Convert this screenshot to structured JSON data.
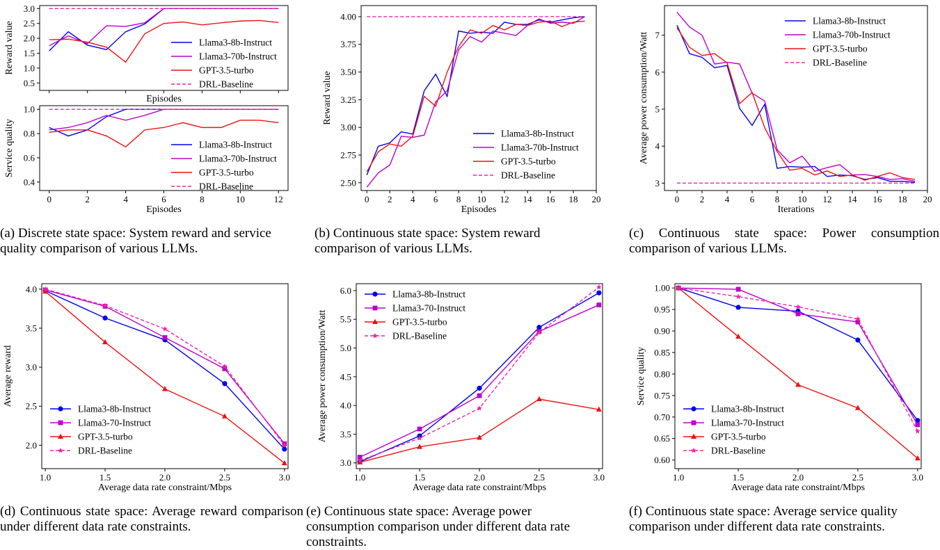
{
  "colors": {
    "llama8": "#0000ee",
    "llama70": "#bb00cc",
    "gpt": "#ee1111",
    "drl": "#ee22aa"
  },
  "captions": {
    "a": "(a) Discrete state space: System reward and service quality comparison of various LLMs.",
    "b": "(b) Continuous state space: System reward comparison of various LLMs.",
    "c": "(c) Continuous state space: Power consumption comparison of various LLMs.",
    "d": "(d) Continuous state space: Average reward comparison under different data rate constraints.",
    "e": "(e) Continuous state space: Average power consumption comparison under different data rate constraints.",
    "f": "(f) Continuous state space: Average service quality comparison under different data rate constraints."
  },
  "chart_data": [
    {
      "id": "a1",
      "type": "line",
      "xlabel": "Episodes",
      "ylabel": "Reward value",
      "xlim": [
        -0.5,
        12.5
      ],
      "ylim": [
        0.25,
        3.1
      ],
      "xticks": [
        0,
        2,
        4,
        6,
        8,
        10,
        12
      ],
      "yticks": [
        0.5,
        1.0,
        1.5,
        2.0,
        2.5,
        3.0
      ],
      "show_xticklabels": false,
      "legend": "lower-right",
      "series": [
        {
          "name": "Llama3-8b-Instruct",
          "style": "solid",
          "x": [
            0,
            1,
            2,
            3,
            4,
            5,
            6,
            7,
            8,
            9,
            10,
            11,
            12
          ],
          "y": [
            1.58,
            2.22,
            1.77,
            1.62,
            2.22,
            2.48,
            3.0,
            3.0,
            3.0,
            3.0,
            3.0,
            3.0,
            3.0
          ]
        },
        {
          "name": "Llama3-70b-Instruct",
          "style": "solid",
          "x": [
            0,
            1,
            2,
            3,
            4,
            5,
            6,
            7,
            8,
            9,
            10,
            11,
            12
          ],
          "y": [
            1.75,
            2.08,
            1.82,
            2.42,
            2.4,
            2.52,
            3.0,
            3.0,
            3.0,
            3.0,
            3.0,
            3.0,
            3.0
          ]
        },
        {
          "name": "GPT-3.5-turbo",
          "style": "solid",
          "x": [
            0,
            1,
            2,
            3,
            4,
            5,
            6,
            7,
            8,
            9,
            10,
            11,
            12
          ],
          "y": [
            1.95,
            1.97,
            1.87,
            1.7,
            1.2,
            2.15,
            2.5,
            2.55,
            2.45,
            2.52,
            2.58,
            2.6,
            2.53
          ]
        },
        {
          "name": "DRL-Baseline",
          "style": "dashed",
          "x": [
            0,
            12
          ],
          "y": [
            3.0,
            3.0
          ]
        }
      ]
    },
    {
      "id": "a2",
      "type": "line",
      "xlabel": "Episodes",
      "ylabel": "Service quality",
      "xlim": [
        -0.5,
        12.5
      ],
      "ylim": [
        0.33,
        1.03
      ],
      "xticks": [
        0,
        2,
        4,
        6,
        8,
        10,
        12
      ],
      "yticks": [
        0.4,
        0.6,
        0.8,
        1.0
      ],
      "legend": "lower-right",
      "series": [
        {
          "name": "Llama3-8b-Instruct",
          "style": "solid",
          "x": [
            0,
            1,
            2,
            3,
            4,
            5,
            6,
            7,
            8,
            9,
            10,
            11,
            12
          ],
          "y": [
            0.85,
            0.78,
            0.83,
            0.94,
            1.0,
            1.0,
            1.0,
            1.0,
            1.0,
            1.0,
            1.0,
            1.0,
            1.0
          ]
        },
        {
          "name": "Llama3-70b-Instruct",
          "style": "solid",
          "x": [
            0,
            1,
            2,
            3,
            4,
            5,
            6,
            7,
            8,
            9,
            10,
            11,
            12
          ],
          "y": [
            0.83,
            0.85,
            0.89,
            0.95,
            0.91,
            0.95,
            1.0,
            1.0,
            1.0,
            1.0,
            1.0,
            1.0,
            1.0
          ]
        },
        {
          "name": "GPT-3.5-turbo",
          "style": "solid",
          "x": [
            0,
            1,
            2,
            3,
            4,
            5,
            6,
            7,
            8,
            9,
            10,
            11,
            12
          ],
          "y": [
            0.81,
            0.83,
            0.83,
            0.78,
            0.69,
            0.83,
            0.85,
            0.89,
            0.85,
            0.85,
            0.91,
            0.91,
            0.89
          ]
        },
        {
          "name": "DRL-Baseline",
          "style": "dashed",
          "x": [
            0,
            12
          ],
          "y": [
            1.0,
            1.0
          ]
        }
      ]
    },
    {
      "id": "b",
      "type": "line",
      "xlabel": "Episodes",
      "ylabel": "Reward value",
      "xlim": [
        -0.5,
        20
      ],
      "ylim": [
        2.43,
        4.1
      ],
      "xticks": [
        0,
        2,
        4,
        6,
        8,
        10,
        12,
        14,
        16,
        18,
        20
      ],
      "yticks": [
        2.5,
        2.75,
        3.0,
        3.25,
        3.5,
        3.75,
        4.0
      ],
      "yticklabels": [
        "2.50",
        "2.75",
        "3.00",
        "3.25",
        "3.50",
        "3.75",
        "4.00"
      ],
      "legend": "lower-right",
      "series": [
        {
          "name": "Llama3-8b-Instruct",
          "style": "solid",
          "x": [
            0,
            1,
            2,
            3,
            4,
            5,
            6,
            7,
            8,
            9,
            10,
            11,
            12,
            13,
            14,
            15,
            16,
            17,
            18,
            19
          ],
          "y": [
            2.57,
            2.83,
            2.86,
            2.96,
            2.94,
            3.33,
            3.48,
            3.28,
            3.87,
            3.85,
            3.86,
            3.85,
            3.95,
            3.93,
            3.93,
            3.97,
            3.95,
            3.97,
            3.99,
            4.0
          ]
        },
        {
          "name": "Llama3-70b-Instruct",
          "style": "solid",
          "x": [
            0,
            1,
            2,
            3,
            4,
            5,
            6,
            7,
            8,
            9,
            10,
            11,
            12,
            13,
            14,
            15,
            16,
            17,
            18,
            19
          ],
          "y": [
            2.46,
            2.59,
            2.66,
            2.92,
            2.91,
            2.93,
            3.23,
            3.33,
            3.7,
            3.82,
            3.77,
            3.87,
            3.85,
            3.83,
            3.92,
            3.98,
            3.94,
            3.95,
            3.94,
            4.0
          ]
        },
        {
          "name": "GPT-3.5-turbo",
          "style": "solid",
          "x": [
            0,
            1,
            2,
            3,
            4,
            5,
            6,
            7,
            8,
            9,
            10,
            11,
            12,
            13,
            14,
            15,
            16,
            17,
            18,
            19
          ],
          "y": [
            2.6,
            2.78,
            2.85,
            2.83,
            2.92,
            3.28,
            3.19,
            3.5,
            3.73,
            3.88,
            3.85,
            3.92,
            3.88,
            3.93,
            3.92,
            3.95,
            3.96,
            3.91,
            3.95,
            3.96
          ]
        },
        {
          "name": "DRL-Baseline",
          "style": "dashed",
          "x": [
            0,
            19
          ],
          "y": [
            4.0,
            4.0
          ]
        }
      ]
    },
    {
      "id": "c",
      "type": "line",
      "xlabel": "Iterations",
      "ylabel": "Average power consumption/Watt",
      "xlim": [
        -1,
        20
      ],
      "ylim": [
        2.8,
        7.8
      ],
      "xticks": [
        0,
        2,
        4,
        6,
        8,
        10,
        12,
        14,
        16,
        18,
        20
      ],
      "yticks": [
        3,
        4,
        5,
        6,
        7
      ],
      "legend": "top-right",
      "series": [
        {
          "name": "Llama3-8b-Instruct",
          "style": "solid",
          "x": [
            0,
            1,
            2,
            3,
            4,
            5,
            6,
            7,
            8,
            9,
            10,
            11,
            12,
            13,
            14,
            15,
            16,
            17,
            18,
            19
          ],
          "y": [
            7.27,
            6.5,
            6.4,
            6.12,
            6.18,
            5.02,
            4.56,
            5.13,
            3.4,
            3.45,
            3.43,
            3.45,
            3.18,
            3.22,
            3.2,
            3.1,
            3.15,
            3.05,
            3.05,
            3.02
          ]
        },
        {
          "name": "Llama3-70b-Instruct",
          "style": "solid",
          "x": [
            0,
            1,
            2,
            3,
            4,
            5,
            6,
            7,
            8,
            9,
            10,
            11,
            12,
            13,
            14,
            15,
            16,
            17,
            18,
            19
          ],
          "y": [
            7.62,
            7.22,
            7.0,
            6.22,
            6.27,
            6.22,
            5.43,
            5.22,
            3.9,
            3.55,
            3.73,
            3.32,
            3.42,
            3.5,
            3.22,
            3.23,
            3.18,
            3.1,
            3.12,
            3.05
          ]
        },
        {
          "name": "GPT-3.5-turbo",
          "style": "solid",
          "x": [
            0,
            1,
            2,
            3,
            4,
            5,
            6,
            7,
            8,
            9,
            10,
            11,
            12,
            13,
            14,
            15,
            16,
            17,
            18,
            19
          ],
          "y": [
            7.2,
            6.67,
            6.45,
            6.5,
            6.25,
            5.15,
            5.45,
            4.5,
            3.85,
            3.35,
            3.4,
            3.22,
            3.33,
            3.18,
            3.22,
            3.08,
            3.18,
            3.28,
            3.15,
            3.1
          ]
        },
        {
          "name": "DRL-Baseline",
          "style": "dashed",
          "x": [
            0,
            19
          ],
          "y": [
            3.0,
            3.0
          ]
        }
      ]
    },
    {
      "id": "d",
      "type": "line",
      "xlabel": "Average data rate constraint/Mbps",
      "ylabel": "Average reward",
      "xlim": [
        0.97,
        3.03
      ],
      "ylim": [
        1.7,
        4.07
      ],
      "xticks": [
        1.0,
        1.5,
        2.0,
        2.5,
        3.0
      ],
      "yticks": [
        2.0,
        2.5,
        3.0,
        3.5,
        4.0
      ],
      "legend": "lower-left",
      "series": [
        {
          "name": "Llama3-8b-Instruct",
          "style": "solid",
          "marker": "circle",
          "x": [
            1.0,
            1.5,
            2.0,
            2.5,
            3.0
          ],
          "y": [
            3.98,
            3.63,
            3.35,
            2.79,
            1.95
          ]
        },
        {
          "name": "Llama3-70-Instruct",
          "style": "solid",
          "marker": "square",
          "x": [
            1.0,
            1.5,
            2.0,
            2.5,
            3.0
          ],
          "y": [
            3.99,
            3.78,
            3.38,
            2.98,
            2.02
          ]
        },
        {
          "name": "GPT-3.5-turbo",
          "style": "solid",
          "marker": "triangle",
          "x": [
            1.0,
            1.5,
            2.0,
            2.5,
            3.0
          ],
          "y": [
            3.97,
            3.32,
            2.72,
            2.37,
            1.77
          ]
        },
        {
          "name": "DRL-Baseline",
          "style": "dashed",
          "marker": "star",
          "x": [
            1.0,
            1.5,
            2.0,
            2.5,
            3.0
          ],
          "y": [
            4.0,
            3.79,
            3.49,
            3.01,
            2.0
          ]
        }
      ]
    },
    {
      "id": "e",
      "type": "line",
      "xlabel": "Average data rate constraint/Mbps",
      "ylabel": "Average power consumption/Watt",
      "xlim": [
        0.97,
        3.03
      ],
      "ylim": [
        2.9,
        6.12
      ],
      "xticks": [
        1.0,
        1.5,
        2.0,
        2.5,
        3.0
      ],
      "yticks": [
        3.0,
        3.5,
        4.0,
        4.5,
        5.0,
        5.5,
        6.0
      ],
      "legend": "top-left",
      "series": [
        {
          "name": "Llama3-8b-Instruct",
          "style": "solid",
          "marker": "circle",
          "x": [
            1.0,
            1.5,
            2.0,
            2.5,
            3.0
          ],
          "y": [
            3.02,
            3.47,
            4.3,
            5.36,
            5.96
          ]
        },
        {
          "name": "Llama3-70-Instruct",
          "style": "solid",
          "marker": "square",
          "x": [
            1.0,
            1.5,
            2.0,
            2.5,
            3.0
          ],
          "y": [
            3.1,
            3.59,
            4.17,
            5.29,
            5.75
          ]
        },
        {
          "name": "GPT-3.5-turbo",
          "style": "solid",
          "marker": "triangle",
          "x": [
            1.0,
            1.5,
            2.0,
            2.5,
            3.0
          ],
          "y": [
            3.01,
            3.28,
            3.44,
            4.11,
            3.93
          ]
        },
        {
          "name": "DRL-Baseline",
          "style": "dashed",
          "marker": "star",
          "x": [
            1.0,
            1.5,
            2.0,
            2.5,
            3.0
          ],
          "y": [
            3.04,
            3.43,
            3.95,
            5.27,
            6.06
          ]
        }
      ]
    },
    {
      "id": "f",
      "type": "line",
      "xlabel": "Average data rate constraint/Mbps",
      "ylabel": "Service quality",
      "xlim": [
        0.97,
        3.03
      ],
      "ylim": [
        0.58,
        1.01
      ],
      "xticks": [
        1.0,
        1.5,
        2.0,
        2.5,
        3.0
      ],
      "yticks": [
        0.6,
        0.65,
        0.7,
        0.75,
        0.8,
        0.85,
        0.9,
        0.95,
        1.0
      ],
      "yticklabels": [
        "0.60",
        "0.65",
        "0.70",
        "0.75",
        "0.80",
        "0.85",
        "0.90",
        "0.95",
        "1.00"
      ],
      "legend": "lower-left",
      "series": [
        {
          "name": "Llama3-8b-Instruct",
          "style": "solid",
          "marker": "circle",
          "x": [
            1.0,
            1.5,
            2.0,
            2.5,
            3.0
          ],
          "y": [
            1.0,
            0.955,
            0.946,
            0.879,
            0.692
          ]
        },
        {
          "name": "Llama3-70-Instruct",
          "style": "solid",
          "marker": "square",
          "x": [
            1.0,
            1.5,
            2.0,
            2.5,
            3.0
          ],
          "y": [
            1.0,
            0.997,
            0.94,
            0.921,
            0.682
          ]
        },
        {
          "name": "GPT-3.5-turbo",
          "style": "solid",
          "marker": "triangle",
          "x": [
            1.0,
            1.5,
            2.0,
            2.5,
            3.0
          ],
          "y": [
            1.0,
            0.887,
            0.775,
            0.721,
            0.604
          ]
        },
        {
          "name": "DRL-Baseline",
          "style": "dashed",
          "marker": "star",
          "x": [
            1.0,
            1.5,
            2.0,
            2.5,
            3.0
          ],
          "y": [
            1.0,
            0.98,
            0.956,
            0.928,
            0.667
          ]
        }
      ]
    }
  ]
}
